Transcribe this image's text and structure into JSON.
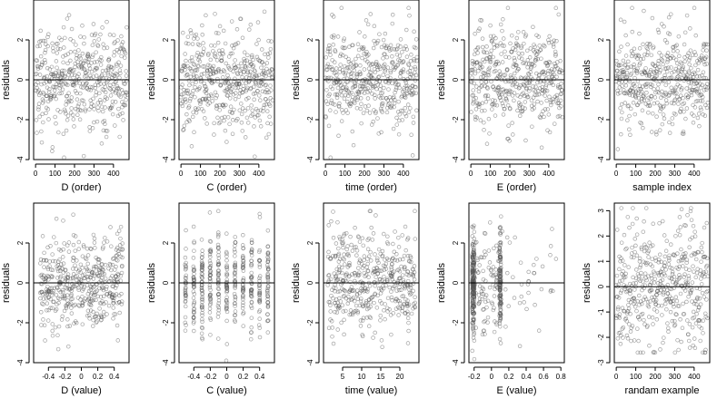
{
  "chart_data": [
    {
      "type": "scatter",
      "xlabel": "D (order)",
      "ylabel": "residuals",
      "xlim": [
        -10,
        480
      ],
      "ylim": [
        -4,
        4
      ],
      "xticks": [
        0,
        100,
        200,
        300,
        400
      ],
      "yticks": [
        -4,
        -2,
        0,
        2
      ],
      "reference_line": 0,
      "n_points": 470,
      "pattern": "uniform",
      "ymin": -3.9,
      "ymax": 3.6
    },
    {
      "type": "scatter",
      "xlabel": "C (order)",
      "ylabel": "residuals",
      "xlim": [
        -10,
        480
      ],
      "ylim": [
        -4,
        4
      ],
      "xticks": [
        0,
        100,
        200,
        300,
        400
      ],
      "yticks": [
        -4,
        -2,
        0,
        2
      ],
      "reference_line": 0,
      "n_points": 470,
      "pattern": "uniform",
      "ymin": -3.9,
      "ymax": 3.6
    },
    {
      "type": "scatter",
      "xlabel": "time (order)",
      "ylabel": "residuals",
      "xlim": [
        -10,
        480
      ],
      "ylim": [
        -4,
        4
      ],
      "xticks": [
        0,
        100,
        200,
        300,
        400
      ],
      "yticks": [
        -4,
        -2,
        0,
        2
      ],
      "reference_line": 0,
      "n_points": 470,
      "pattern": "uniform",
      "ymin": -3.9,
      "ymax": 3.6
    },
    {
      "type": "scatter",
      "xlabel": "E (order)",
      "ylabel": "residuals",
      "xlim": [
        -10,
        480
      ],
      "ylim": [
        -4,
        4
      ],
      "xticks": [
        0,
        100,
        200,
        300,
        400
      ],
      "yticks": [
        -4,
        -2,
        0,
        2
      ],
      "reference_line": 0,
      "n_points": 470,
      "pattern": "uniform",
      "ymin": -3.9,
      "ymax": 3.6
    },
    {
      "type": "scatter",
      "xlabel": "sample index",
      "ylabel": "residuals",
      "xlim": [
        -10,
        480
      ],
      "ylim": [
        -4,
        4
      ],
      "xticks": [
        0,
        100,
        200,
        300,
        400
      ],
      "yticks": [
        -4,
        -2,
        0,
        2
      ],
      "reference_line": 0,
      "n_points": 470,
      "pattern": "uniform",
      "ymin": -3.9,
      "ymax": 3.6
    },
    {
      "type": "scatter",
      "xlabel": "D (value)",
      "ylabel": "residuals",
      "xlim": [
        -0.58,
        0.58
      ],
      "ylim": [
        -4,
        4
      ],
      "xticks": [
        -0.4,
        -0.2,
        0.0,
        0.2,
        0.4
      ],
      "yticks": [
        -4,
        -2,
        0,
        2
      ],
      "reference_line": 0,
      "n_points": 470,
      "pattern": "uniform",
      "xrange": [
        -0.5,
        0.5
      ],
      "ymin": -3.9,
      "ymax": 3.6
    },
    {
      "type": "scatter",
      "xlabel": "C (value)",
      "ylabel": "residuals",
      "xlim": [
        -0.58,
        0.58
      ],
      "ylim": [
        -4,
        4
      ],
      "xticks": [
        -0.4,
        -0.2,
        0.0,
        0.2,
        0.4
      ],
      "yticks": [
        -4,
        -2,
        0,
        2
      ],
      "reference_line": 0,
      "n_points": 470,
      "pattern": "discrete",
      "xvalues": [
        -0.5,
        -0.4,
        -0.3,
        -0.2,
        -0.1,
        0.0,
        0.1,
        0.2,
        0.3,
        0.4,
        0.5
      ],
      "ymin": -3.9,
      "ymax": 3.6
    },
    {
      "type": "scatter",
      "xlabel": "time (value)",
      "ylabel": "residuals",
      "xlim": [
        0,
        25
      ],
      "ylim": [
        -4,
        4
      ],
      "xticks": [
        5,
        10,
        15,
        20
      ],
      "yticks": [
        -4,
        -2,
        0,
        2
      ],
      "reference_line": 0,
      "n_points": 470,
      "pattern": "uniform",
      "xrange": [
        1,
        24
      ],
      "ymin": -3.9,
      "ymax": 3.6
    },
    {
      "type": "scatter",
      "xlabel": "E (value)",
      "ylabel": "residuals",
      "xlim": [
        -0.26,
        0.84
      ],
      "ylim": [
        -4,
        4
      ],
      "xticks": [
        -0.2,
        0.0,
        0.2,
        0.4,
        0.6,
        0.8
      ],
      "yticks": [
        -4,
        -2,
        0,
        2
      ],
      "reference_line": 0,
      "n_points": 470,
      "pattern": "skewed",
      "xrange": [
        -0.22,
        0.8
      ],
      "ymin": -3.9,
      "ymax": 3.6
    },
    {
      "type": "scatter",
      "xlabel": "randam example",
      "ylabel": "residuals",
      "xlim": [
        -10,
        480
      ],
      "ylim": [
        -3,
        3.3
      ],
      "xticks": [
        0,
        100,
        200,
        300,
        400
      ],
      "yticks": [
        -3,
        -2,
        -1,
        0,
        1,
        2,
        3
      ],
      "reference_line": 0,
      "n_points": 470,
      "pattern": "uniform",
      "ymin": -2.6,
      "ymax": 3.1
    }
  ]
}
